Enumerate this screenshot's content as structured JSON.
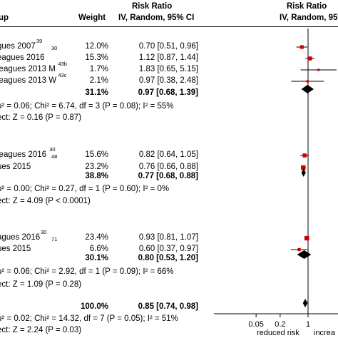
{
  "header": {
    "group_col": "up",
    "weight_col": "Weight",
    "rr_title_1": "Risk Ratio",
    "rr_sub_1": "IV, Random, 95% CI",
    "rr_title_2": "Risk Ratio",
    "rr_sub_2": "IV, Random, 95%"
  },
  "rows": [
    {
      "label": "gues 2007",
      "sup": "39",
      "sup2": "30",
      "weight": "12.0%",
      "ci": "0.70 [0.51, 0.96]"
    },
    {
      "label": "eagues 2016",
      "sup": "",
      "sup2": "",
      "weight": "15.3%",
      "ci": "1.12 [0.87, 1.44]"
    },
    {
      "label": "leagues 2013 M",
      "sup": "43b",
      "sup2": "",
      "weight": "1.7%",
      "ci": "1.83 [0.65, 5.15]"
    },
    {
      "label": "leagues 2013 W",
      "sup": "43c",
      "sup2": "",
      "weight": "2.1%",
      "ci": "0.97 [0.38, 2.48]"
    },
    {
      "label": "",
      "sup": "",
      "sup2": "",
      "weight": "31.1%",
      "ci": "0.97 [0.68, 1.39]",
      "bold": true
    },
    {
      "label": "u² = 0.06; Chi² = 6.74, df = 3 (P = 0.08); I² = 55%"
    },
    {
      "label": "ect: Z = 0.16 (P = 0.87)"
    },
    {
      "label": "leagues 2016",
      "sup": "30",
      "sup2": "48",
      "weight": "15.6%",
      "ci": "0.82 [0.64, 1.05]"
    },
    {
      "label": "ues 2015",
      "sup": "",
      "sup2": "",
      "weight": "23.2%",
      "ci": "0.76 [0.66, 0.88]"
    },
    {
      "label": "",
      "sup": "",
      "sup2": "",
      "weight": "38.8%",
      "ci": "0.77 [0.68, 0.88]",
      "bold": true
    },
    {
      "label": "u² = 0.00; Chi² = 0.27, df = 1 (P = 0.60); I² = 0%"
    },
    {
      "label": "ect: Z = 4.09 (P < 0.0001)"
    },
    {
      "label": "agues 2016",
      "sup": "30",
      "sup2": "71",
      "weight": "23.4%",
      "ci": "0.93 [0.81, 1.07]"
    },
    {
      "label": "ues 2015",
      "sup": "",
      "sup2": "",
      "weight": "6.6%",
      "ci": "0.60 [0.37, 0.97]"
    },
    {
      "label": "",
      "sup": "",
      "sup2": "",
      "weight": "30.1%",
      "ci": "0.80 [0.53, 1.20]",
      "bold": true
    },
    {
      "label": "u² = 0.06; Chi² = 2.92, df = 1 (P = 0.09); I² = 66%"
    },
    {
      "label": "ect: Z = 1.09 (P = 0.28)"
    },
    {
      "label": "",
      "sup": "",
      "sup2": "",
      "weight": "100.0%",
      "ci": "0.85 [0.74, 0.98]",
      "bold": true
    },
    {
      "label": "u² = 0.02; Chi² = 14.32, df = 7 (P = 0.05); I² = 51%"
    },
    {
      "label": "ect: Z = 2.24 (P = 0.03)"
    }
  ],
  "chart_data": {
    "type": "forest",
    "scale": "log",
    "ticks": [
      "0.05",
      "0.2",
      "1"
    ],
    "tick_values": [
      0.05,
      0.2,
      1
    ],
    "xlabel_left": "reduced risk",
    "xlabel_right": "increa",
    "studies": [
      {
        "rr": 0.7,
        "lo": 0.51,
        "hi": 0.96,
        "weight": 12.0
      },
      {
        "rr": 1.12,
        "lo": 0.87,
        "hi": 1.44,
        "weight": 15.3
      },
      {
        "rr": 1.83,
        "lo": 0.65,
        "hi": 5.15,
        "weight": 1.7
      },
      {
        "rr": 0.97,
        "lo": 0.38,
        "hi": 2.48,
        "weight": 2.1
      },
      {
        "rr": 0.82,
        "lo": 0.64,
        "hi": 1.05,
        "weight": 15.6
      },
      {
        "rr": 0.76,
        "lo": 0.66,
        "hi": 0.88,
        "weight": 23.2
      },
      {
        "rr": 0.93,
        "lo": 0.81,
        "hi": 1.07,
        "weight": 23.4
      },
      {
        "rr": 0.6,
        "lo": 0.37,
        "hi": 0.97,
        "weight": 6.6
      }
    ],
    "pooled": [
      {
        "rr": 0.97,
        "lo": 0.68,
        "hi": 1.39
      },
      {
        "rr": 0.77,
        "lo": 0.68,
        "hi": 0.88
      },
      {
        "rr": 0.8,
        "lo": 0.53,
        "hi": 1.2
      },
      {
        "rr": 0.85,
        "lo": 0.74,
        "hi": 0.98
      }
    ],
    "colors": {
      "study_marker": "#cc0000",
      "pooled_marker": "#000000"
    }
  }
}
